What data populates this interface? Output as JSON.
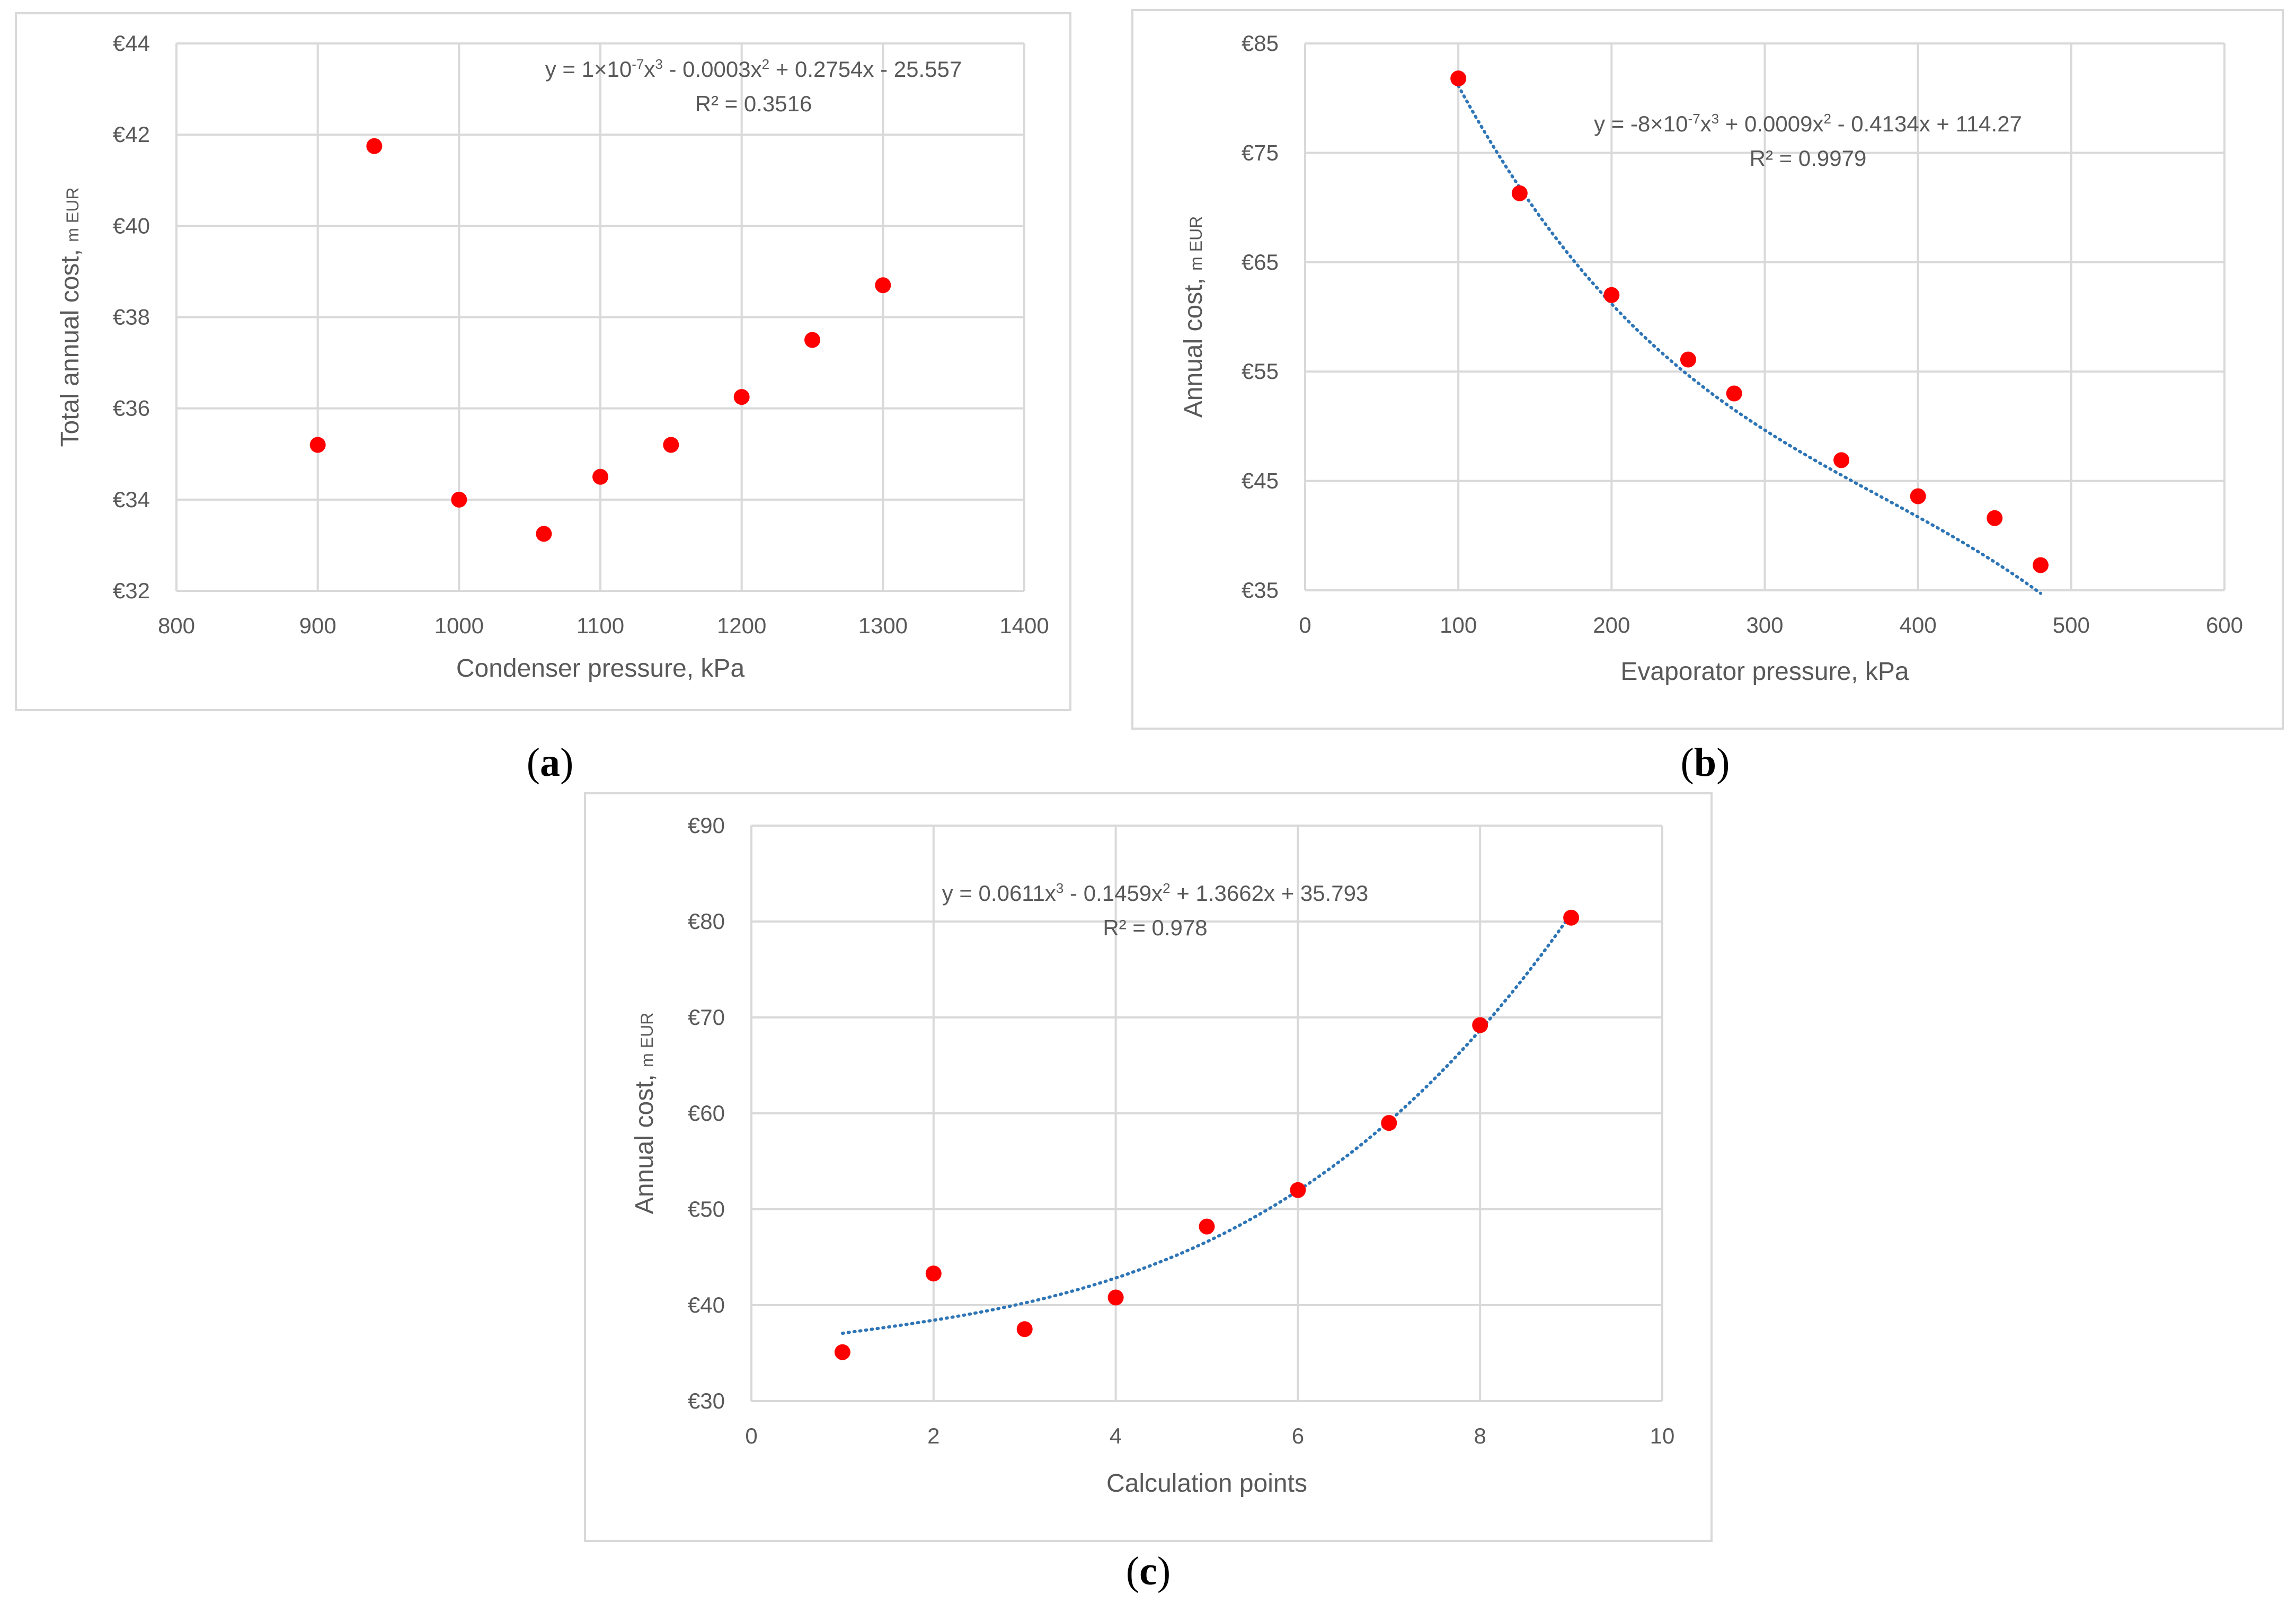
{
  "colors": {
    "point": "#ff0000",
    "trend": "#2e75b6",
    "grid": "#d9d9d9",
    "frame": "#d9d9d9",
    "text": "#595959"
  },
  "chart_data": [
    {
      "id": "a",
      "type": "scatter",
      "panel_label": "a",
      "xlabel": "Condenser pressure, kPa",
      "ylabel": "Total annual cost,",
      "ylabel_unit": "m EUR",
      "xlim": [
        800,
        1400
      ],
      "ylim": [
        32,
        44
      ],
      "x_ticks": [
        800,
        900,
        1000,
        1100,
        1200,
        1300,
        1400
      ],
      "y_ticks": [
        32,
        34,
        36,
        38,
        40,
        42,
        44
      ],
      "y_tick_labels": [
        "€32",
        "€34",
        "€36",
        "€38",
        "€40",
        "€42",
        "€44"
      ],
      "grid": true,
      "points": [
        {
          "x": 900,
          "y": 35.2
        },
        {
          "x": 940,
          "y": 41.75
        },
        {
          "x": 1000,
          "y": 34.0
        },
        {
          "x": 1060,
          "y": 33.25
        },
        {
          "x": 1100,
          "y": 34.5
        },
        {
          "x": 1150,
          "y": 35.2
        },
        {
          "x": 1200,
          "y": 36.25
        },
        {
          "x": 1250,
          "y": 37.5
        },
        {
          "x": 1300,
          "y": 38.7
        }
      ],
      "trendline": {
        "type": "poly3",
        "coefficients": [
          -25.557,
          0.2754,
          -0.0003,
          1e-07
        ],
        "x_range": [
          900,
          1300
        ]
      },
      "equation_parts": [
        "y = 1×10",
        "-7",
        "x",
        "3",
        " - 0.0003x",
        "2",
        " + 0.2754x - 25.557"
      ],
      "r2_label": "R² = 0.3516"
    },
    {
      "id": "b",
      "type": "scatter",
      "panel_label": "b",
      "xlabel": "Evaporator pressure, kPa",
      "ylabel": "Annual cost,",
      "ylabel_unit": "m EUR",
      "xlim": [
        0,
        600
      ],
      "ylim": [
        35,
        85
      ],
      "x_ticks": [
        0,
        100,
        200,
        300,
        400,
        500,
        600
      ],
      "y_ticks": [
        35,
        45,
        55,
        65,
        75,
        85
      ],
      "y_tick_labels": [
        "€35",
        "€45",
        "€55",
        "€65",
        "€75",
        "€85"
      ],
      "grid": true,
      "points": [
        {
          "x": 100,
          "y": 81.8
        },
        {
          "x": 140,
          "y": 71.3
        },
        {
          "x": 200,
          "y": 62.0
        },
        {
          "x": 250,
          "y": 56.1
        },
        {
          "x": 280,
          "y": 53.0
        },
        {
          "x": 350,
          "y": 46.9
        },
        {
          "x": 400,
          "y": 43.6
        },
        {
          "x": 450,
          "y": 41.6
        },
        {
          "x": 480,
          "y": 37.3
        }
      ],
      "trendline": {
        "type": "poly3",
        "coefficients": [
          114.27,
          -0.4134,
          0.0009,
          -8e-07
        ],
        "x_range": [
          100,
          480
        ]
      },
      "equation_parts": [
        "y = -8×10",
        "-7",
        "x",
        "3",
        " + 0.0009x",
        "2",
        " - 0.4134x + 114.27"
      ],
      "r2_label": "R² = 0.9979"
    },
    {
      "id": "c",
      "type": "scatter",
      "panel_label": "c",
      "xlabel": "Calculation points",
      "ylabel": "Annual cost,",
      "ylabel_unit": "m EUR",
      "xlim": [
        0,
        10
      ],
      "ylim": [
        30,
        90
      ],
      "x_ticks": [
        0,
        2,
        4,
        6,
        8,
        10
      ],
      "y_ticks": [
        30,
        40,
        50,
        60,
        70,
        80,
        90
      ],
      "y_tick_labels": [
        "€30",
        "€40",
        "€50",
        "€60",
        "€70",
        "€80",
        "€90"
      ],
      "grid": true,
      "points": [
        {
          "x": 1,
          "y": 35.1
        },
        {
          "x": 2,
          "y": 43.3
        },
        {
          "x": 3,
          "y": 37.5
        },
        {
          "x": 4,
          "y": 40.8
        },
        {
          "x": 5,
          "y": 48.2
        },
        {
          "x": 6,
          "y": 52.0
        },
        {
          "x": 7,
          "y": 59.0
        },
        {
          "x": 8,
          "y": 69.2
        },
        {
          "x": 9,
          "y": 80.4
        }
      ],
      "trendline": {
        "type": "poly3",
        "coefficients": [
          35.793,
          1.3662,
          -0.1459,
          0.0611
        ],
        "x_range": [
          1,
          9
        ]
      },
      "equation_parts": [
        "y = 0.0611x",
        "3",
        " - 0.1459x",
        "2",
        " + 1.3662x + 35.793"
      ],
      "r2_label": "R² = 0.978"
    }
  ]
}
